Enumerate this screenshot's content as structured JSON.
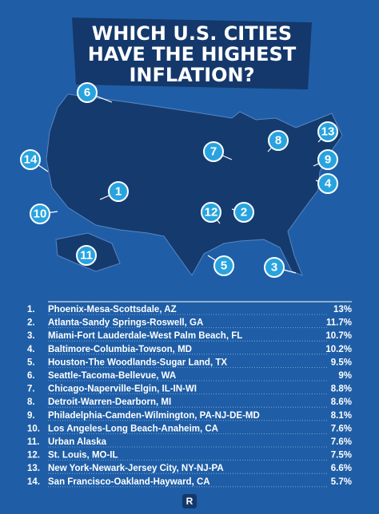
{
  "title": {
    "lines": [
      "WHICH U.S. CITIES",
      "HAVE THE HIGHEST",
      "INFLATION?"
    ]
  },
  "pins": [
    {
      "label": "6"
    },
    {
      "label": "13"
    },
    {
      "label": "8"
    },
    {
      "label": "7"
    },
    {
      "label": "14"
    },
    {
      "label": "9"
    },
    {
      "label": "4"
    },
    {
      "label": "1"
    },
    {
      "label": "12"
    },
    {
      "label": "2"
    },
    {
      "label": "10"
    },
    {
      "label": "11"
    },
    {
      "label": "5"
    },
    {
      "label": "3"
    }
  ],
  "list": {
    "rows": [
      {
        "rank": "1.",
        "city": "Phoenix-Mesa-Scottsdale, AZ",
        "value": "13%"
      },
      {
        "rank": "2.",
        "city": "Atlanta-Sandy Springs-Roswell, GA",
        "value": "11.7%"
      },
      {
        "rank": "3.",
        "city": "Miami-Fort Lauderdale-West Palm Beach, FL",
        "value": "10.7%"
      },
      {
        "rank": "4.",
        "city": "Baltimore-Columbia-Towson, MD",
        "value": "10.2%"
      },
      {
        "rank": "5.",
        "city": "Houston-The Woodlands-Sugar Land, TX",
        "value": "9.5%"
      },
      {
        "rank": "6.",
        "city": "Seattle-Tacoma-Bellevue, WA",
        "value": "9%"
      },
      {
        "rank": "7.",
        "city": "Chicago-Naperville-Elgin, IL-IN-WI",
        "value": "8.8%"
      },
      {
        "rank": "8.",
        "city": "Detroit-Warren-Dearborn, MI",
        "value": "8.6%"
      },
      {
        "rank": "9.",
        "city": "Philadelphia-Camden-Wilmington, PA-NJ-DE-MD",
        "value": "8.1%"
      },
      {
        "rank": "10.",
        "city": "Los Angeles-Long Beach-Anaheim, CA",
        "value": "7.6%"
      },
      {
        "rank": "11.",
        "city": "Urban Alaska",
        "value": "7.6%"
      },
      {
        "rank": "12.",
        "city": "St. Louis, MO-IL",
        "value": "7.5%"
      },
      {
        "rank": "13.",
        "city": "New York-Newark-Jersey City, NY-NJ-PA",
        "value": "6.6%"
      },
      {
        "rank": "14.",
        "city": "San Francisco-Oakland-Hayward, CA",
        "value": "5.7%"
      }
    ]
  },
  "logo": "R"
}
